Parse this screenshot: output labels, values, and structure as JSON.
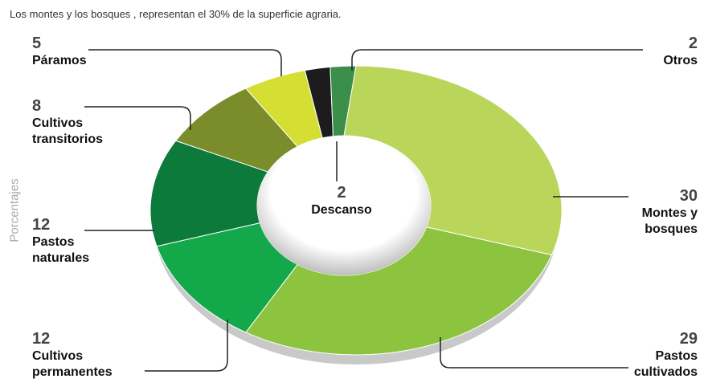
{
  "chart_data": {
    "type": "donut",
    "title": "Los montes y los bosques , representan el 30% de la superficie agraria.",
    "ylabel": "Porcentajes",
    "categories": [
      "Montes y bosques",
      "Pastos cultivados",
      "Cultivos permanentes",
      "Pastos naturales",
      "Cultivos transitorios",
      "Páramos",
      "Descanso",
      "Otros"
    ],
    "values": [
      30,
      29,
      12,
      12,
      8,
      5,
      2,
      2
    ],
    "colors": [
      "#b9d65b",
      "#8cc43f",
      "#13a94b",
      "#0b7a3a",
      "#7b8d2b",
      "#d5df33",
      "#1c1c1c",
      "#3b8f4b"
    ]
  }
}
